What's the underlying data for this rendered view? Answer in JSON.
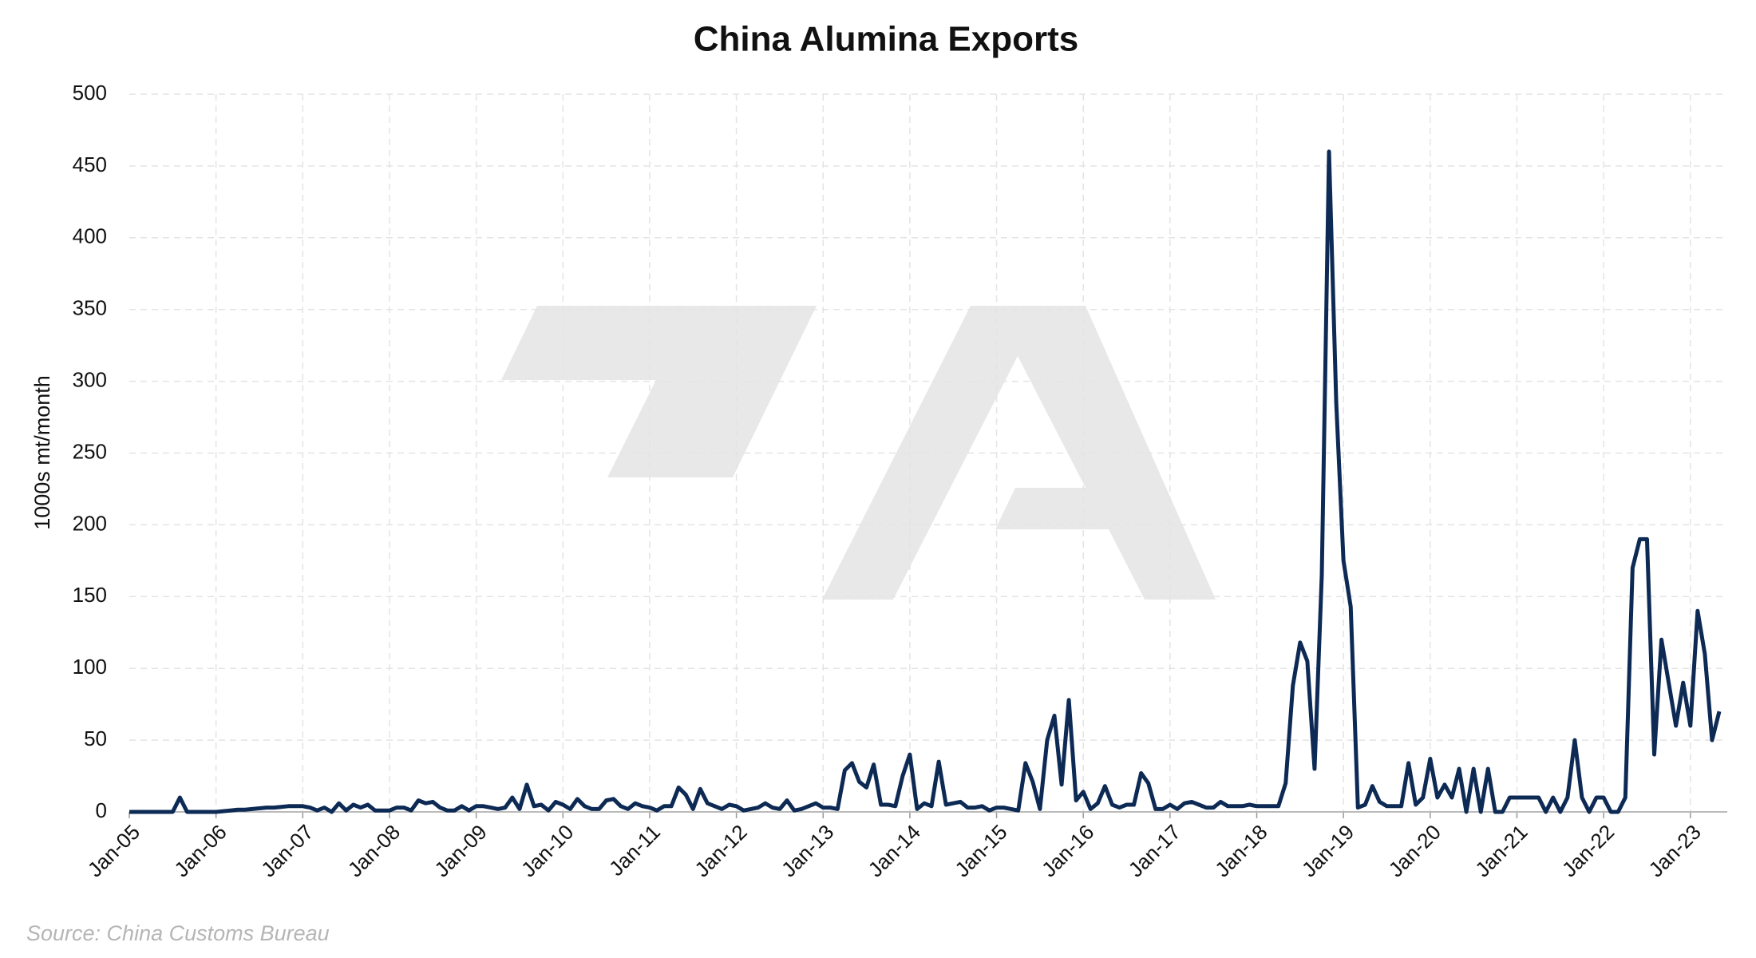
{
  "chart_data": {
    "type": "line",
    "title": "China Alumina Exports",
    "y_label": "1000s mt/month",
    "source": "Source: China Customs Bureau",
    "color": "#0d2a55",
    "grid": true,
    "ylim": [
      0,
      500
    ],
    "yticks": [
      0,
      50,
      100,
      150,
      200,
      250,
      300,
      350,
      400,
      450,
      500
    ],
    "categories": [
      "Jan-05",
      null,
      null,
      null,
      null,
      null,
      null,
      null,
      null,
      null,
      null,
      null,
      "Jan-06",
      null,
      null,
      null,
      null,
      null,
      null,
      null,
      null,
      null,
      null,
      null,
      "Jan-07",
      null,
      null,
      null,
      null,
      null,
      null,
      null,
      null,
      null,
      null,
      null,
      "Jan-08",
      null,
      null,
      null,
      null,
      null,
      null,
      null,
      null,
      null,
      null,
      null,
      "Jan-09",
      null,
      null,
      null,
      null,
      null,
      null,
      null,
      null,
      null,
      null,
      null,
      "Jan-10",
      null,
      null,
      null,
      null,
      null,
      null,
      null,
      null,
      null,
      null,
      null,
      "Jan-11",
      null,
      null,
      null,
      null,
      null,
      null,
      null,
      null,
      null,
      null,
      null,
      "Jan-12",
      null,
      null,
      null,
      null,
      null,
      null,
      null,
      null,
      null,
      null,
      null,
      "Jan-13",
      null,
      null,
      null,
      null,
      null,
      null,
      null,
      null,
      null,
      null,
      null,
      "Jan-14",
      null,
      null,
      null,
      null,
      null,
      null,
      null,
      null,
      null,
      null,
      null,
      "Jan-15",
      null,
      null,
      null,
      null,
      null,
      null,
      null,
      null,
      null,
      null,
      null,
      "Jan-16",
      null,
      null,
      null,
      null,
      null,
      null,
      null,
      null,
      null,
      null,
      null,
      "Jan-17",
      null,
      null,
      null,
      null,
      null,
      null,
      null,
      null,
      null,
      null,
      null,
      "Jan-18",
      null,
      null,
      null,
      null,
      null,
      null,
      null,
      null,
      null,
      null,
      null,
      "Jan-19",
      null,
      null,
      null,
      null,
      null,
      null,
      null,
      null,
      null,
      null,
      null,
      "Jan-20",
      null,
      null,
      null,
      null,
      null,
      null,
      null,
      null,
      null,
      null,
      null,
      "Jan-21",
      null,
      null,
      null,
      null,
      null,
      null,
      null,
      null,
      null,
      null,
      null,
      "Jan-22",
      null,
      null,
      null,
      null,
      null,
      null,
      null,
      null,
      null,
      null,
      null,
      "Jan-23",
      null,
      null,
      null,
      null
    ],
    "values": [
      0,
      0,
      0,
      0,
      0,
      0,
      0,
      10,
      0,
      0,
      0,
      0,
      0,
      0.5,
      1,
      1.5,
      1.5,
      2,
      2.5,
      3,
      3,
      3.5,
      4,
      4,
      4,
      3,
      1,
      3,
      0,
      6,
      1,
      5,
      3,
      5,
      1,
      1,
      1,
      3,
      3,
      1,
      8,
      6,
      7,
      3,
      1,
      1,
      4,
      1,
      4,
      4,
      3,
      2,
      3,
      10,
      2,
      19,
      4,
      5,
      1,
      7,
      5,
      2,
      9,
      4,
      2,
      2,
      8,
      9,
      4,
      2,
      6,
      4,
      3,
      1,
      4,
      4,
      17,
      12,
      2,
      16,
      6,
      4,
      2,
      5,
      4,
      1,
      2,
      3,
      6,
      3,
      2,
      8,
      1,
      2,
      4,
      6,
      3,
      3,
      2,
      29,
      34,
      21,
      17,
      33,
      5,
      5,
      4,
      25,
      40,
      2,
      6,
      4,
      35,
      5,
      6,
      7,
      3,
      3,
      4,
      1,
      3,
      3,
      2,
      1,
      34,
      21,
      2,
      50,
      67,
      19,
      78,
      8,
      14,
      2,
      6,
      18,
      5,
      3,
      5,
      5,
      27,
      20,
      2,
      2,
      5,
      2,
      6,
      7,
      5,
      3,
      3,
      7,
      4,
      4,
      4,
      5,
      4,
      4,
      4,
      4,
      20,
      88,
      118,
      105,
      30,
      165,
      460,
      285,
      175,
      143,
      3,
      5,
      18,
      7,
      4,
      4,
      4,
      34,
      5,
      10,
      37,
      10,
      19,
      10,
      30,
      0,
      30,
      0,
      30,
      0,
      0,
      10,
      10,
      10,
      10,
      10,
      0,
      10,
      0,
      10,
      50,
      10,
      0,
      10,
      10,
      0,
      0,
      10,
      170,
      190,
      190,
      40,
      120,
      90,
      60,
      90,
      60,
      140,
      110,
      50,
      70
    ]
  }
}
